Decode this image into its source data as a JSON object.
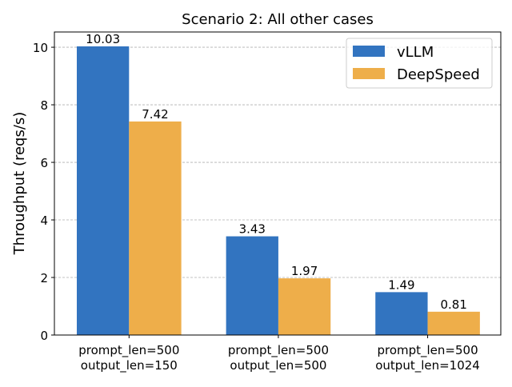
{
  "chart_data": {
    "type": "bar",
    "title": "Scenario 2: All other cases",
    "xlabel": "",
    "ylabel": "Throughput (reqs/s)",
    "categories": [
      "prompt_len=500\noutput_len=150",
      "prompt_len=500\noutput_len=500",
      "prompt_len=500\noutput_len=1024"
    ],
    "series": [
      {
        "name": "vLLM",
        "values": [
          10.03,
          3.43,
          1.49
        ],
        "labels": [
          "10.03",
          "3.43",
          "1.49"
        ],
        "color": "#3274c0"
      },
      {
        "name": "DeepSpeed",
        "values": [
          7.42,
          1.97,
          0.81
        ],
        "labels": [
          "7.42",
          "1.97",
          "0.81"
        ],
        "color": "#eeae4a"
      }
    ],
    "ylim": [
      0,
      10.53
    ],
    "yticks": [
      0,
      2,
      4,
      6,
      8,
      10
    ],
    "grid": "y, dashed",
    "legend": "top-right"
  }
}
